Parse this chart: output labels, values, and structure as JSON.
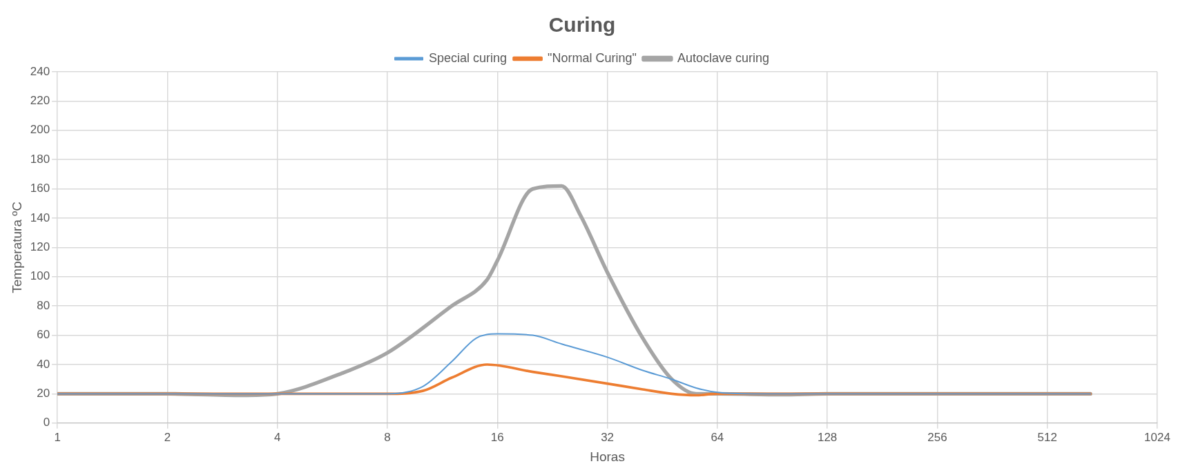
{
  "chart_data": {
    "type": "line",
    "title": "Curing",
    "xlabel": "Horas",
    "ylabel": "Temperatura ºC",
    "log": "x",
    "xlim": [
      1,
      1024
    ],
    "xticks": [
      1,
      2,
      4,
      8,
      16,
      32,
      64,
      128,
      256,
      512,
      1024
    ],
    "ylim": [
      0,
      240
    ],
    "yticks": [
      0,
      20,
      40,
      60,
      80,
      100,
      120,
      140,
      160,
      180,
      200,
      220,
      240
    ],
    "grid": true,
    "legend": "top",
    "marker": "none",
    "line_style": "solid",
    "series": [
      {
        "name": "Special curing",
        "color": "#5b9bd5",
        "x": [
          1,
          2,
          4,
          8,
          10,
          12,
          14,
          16,
          20,
          24,
          32,
          40,
          48,
          56,
          64,
          80,
          128,
          256,
          512,
          672
        ],
        "values": [
          20,
          20,
          20,
          20,
          25,
          42,
          58,
          61,
          60,
          54,
          45,
          36,
          30,
          24,
          21,
          20,
          20,
          20,
          20,
          20
        ]
      },
      {
        "name": "\"Normal Curing\"",
        "color": "#ed7d31",
        "x": [
          1,
          2,
          4,
          8,
          10,
          12,
          15,
          20,
          24,
          32,
          40,
          48,
          56,
          64,
          80,
          128,
          256,
          512,
          672
        ],
        "values": [
          20,
          20,
          20,
          20,
          22,
          31,
          40,
          35,
          32,
          27,
          23,
          20,
          19,
          20,
          20,
          20,
          20,
          20,
          20
        ]
      },
      {
        "name": "Autoclave curing",
        "color": "#a5a5a5",
        "x": [
          1,
          2,
          3.3,
          4,
          6,
          8,
          12,
          15,
          16,
          20,
          24,
          27,
          32,
          40,
          48,
          56,
          64,
          96,
          128,
          256,
          512,
          672
        ],
        "values": [
          20,
          20,
          19,
          20,
          34,
          48,
          80,
          98,
          111,
          160,
          162,
          142,
          103,
          58,
          30,
          20,
          20,
          19.5,
          20,
          20,
          20,
          20
        ]
      }
    ]
  }
}
